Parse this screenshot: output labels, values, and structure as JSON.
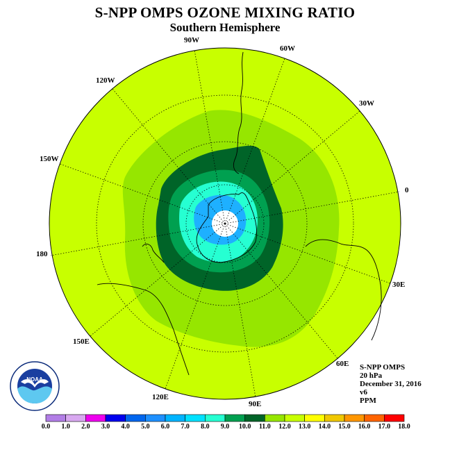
{
  "title": "S-NPP OMPS OZONE MIXING RATIO",
  "subtitle": "Southern Hemisphere",
  "longitude_labels": {
    "lon_90w": "90W",
    "lon_60w": "60W",
    "lon_30w": "30W",
    "lon_0": "0",
    "lon_30e": "30E",
    "lon_60e": "60E",
    "lon_90e": "90E",
    "lon_120e": "120E",
    "lon_150e": "150E",
    "lon_180": "180",
    "lon_150w": "150W",
    "lon_120w": "120W"
  },
  "info": {
    "instrument": "S-NPP OMPS",
    "pressure": "20 hPa",
    "date": "December 31, 2016",
    "version": "v6",
    "units": "PPM"
  },
  "logo": {
    "name": "NOAA",
    "ring_text": "NATIONAL OCEANIC AND ATMOSPHERIC ADMINISTRATION · U.S. DEPARTMENT OF COMMERCE"
  },
  "colorbar": {
    "ticks": [
      "0.0",
      "1.0",
      "2.0",
      "3.0",
      "4.0",
      "5.0",
      "6.0",
      "7.0",
      "8.0",
      "9.0",
      "10.0",
      "11.0",
      "12.0",
      "13.0",
      "14.0",
      "15.0",
      "16.0",
      "17.0",
      "18.0"
    ],
    "colors": [
      "#b27ee6",
      "#d8a8f0",
      "#ee00ee",
      "#0000ee",
      "#0066ee",
      "#1e90ff",
      "#00b4ff",
      "#00e1ff",
      "#26ffd2",
      "#00a050",
      "#006428",
      "#96e600",
      "#c8ff00",
      "#ffff00",
      "#f0c800",
      "#ff9600",
      "#ff6400",
      "#ff0000",
      "#7a5a3c"
    ]
  },
  "chart_data": {
    "type": "heatmap",
    "title": "S-NPP OMPS OZONE MIXING RATIO",
    "subtitle": "Southern Hemisphere",
    "projection": "polar stereographic, south pole centered",
    "units": "PPM",
    "range": [
      0,
      18
    ],
    "contour_levels": [
      0,
      1,
      2,
      3,
      4,
      5,
      6,
      7,
      8,
      9,
      10,
      11,
      12,
      13,
      14,
      15,
      16,
      17,
      18
    ],
    "field": {
      "outer_ring_level": [
        11,
        12
      ],
      "midlatitude_band_level": [
        10,
        11
      ],
      "polar_vortex_edge_level": [
        8,
        10
      ],
      "inner_vortex_levels": [
        [
          6,
          8
        ],
        [
          5,
          6
        ]
      ],
      "pole_level": "below 5 (blank)"
    }
  }
}
